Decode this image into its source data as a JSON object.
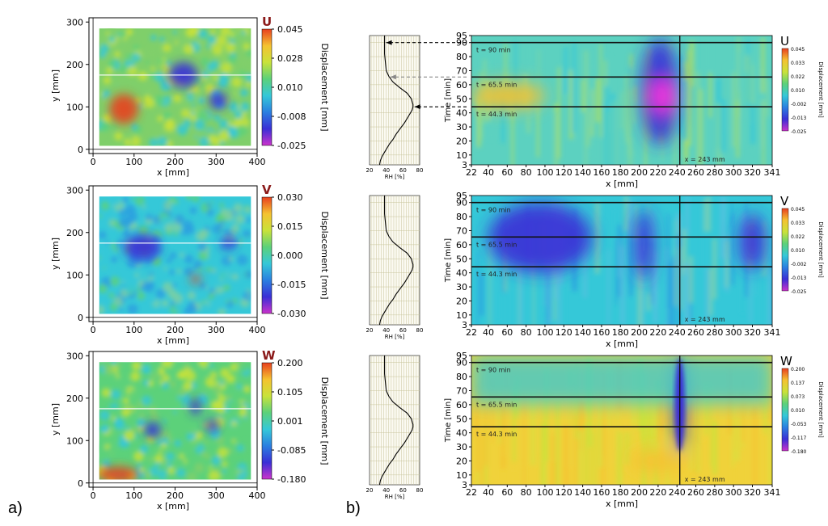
{
  "panel_labels": [
    "a)",
    "b)"
  ],
  "colors": {
    "colormap": [
      "#cc33cc",
      "#3a2fd6",
      "#2a7fe0",
      "#35c8d8",
      "#5cd17a",
      "#c9e23a",
      "#f5c230",
      "#e8401f"
    ],
    "background": "#ffffff"
  },
  "chart_data": [
    {
      "type": "heatmap",
      "panel": "a)",
      "component": "U",
      "xlabel": "x [mm]",
      "ylabel": "y [mm]",
      "x_ticks": [
        "0",
        "100",
        "200",
        "300",
        "400"
      ],
      "y_ticks": [
        "0",
        "100",
        "200",
        "300"
      ],
      "xlim": [
        -10,
        400
      ],
      "ylim": [
        -10,
        310
      ],
      "colorbar": {
        "title": "U",
        "label": "Displacement [mm]",
        "ticks": [
          "0.045",
          "0.028",
          "0.010",
          "-0.008",
          "-0.025"
        ],
        "range": [
          -0.025,
          0.045
        ]
      },
      "features": [
        {
          "kind": "high",
          "x": 75,
          "y": 95,
          "rx": 35,
          "ry": 35
        },
        {
          "kind": "low",
          "x": 220,
          "y": 175,
          "rx": 35,
          "ry": 30
        },
        {
          "kind": "low",
          "x": 305,
          "y": 115,
          "rx": 22,
          "ry": 20
        }
      ]
    },
    {
      "type": "heatmap",
      "panel": "a)",
      "component": "V",
      "xlabel": "x [mm]",
      "ylabel": "y [mm]",
      "x_ticks": [
        "0",
        "100",
        "200",
        "300",
        "400"
      ],
      "y_ticks": [
        "0",
        "100",
        "200",
        "300"
      ],
      "xlim": [
        -10,
        400
      ],
      "ylim": [
        -10,
        310
      ],
      "colorbar": {
        "title": "V",
        "label": "Displacement [mm]",
        "ticks": [
          "0.030",
          "0.015",
          "0.000",
          "-0.015",
          "-0.030"
        ],
        "range": [
          -0.03,
          0.03
        ]
      },
      "features": [
        {
          "kind": "low",
          "x": 120,
          "y": 165,
          "rx": 45,
          "ry": 30
        },
        {
          "kind": "low",
          "x": 330,
          "y": 175,
          "rx": 18,
          "ry": 15
        },
        {
          "kind": "high",
          "x": 250,
          "y": 90,
          "rx": 12,
          "ry": 10
        }
      ]
    },
    {
      "type": "heatmap",
      "panel": "a)",
      "component": "W",
      "xlabel": "x [mm]",
      "ylabel": "y [mm]",
      "x_ticks": [
        "0",
        "100",
        "200",
        "300",
        "400"
      ],
      "y_ticks": [
        "0",
        "100",
        "200",
        "300"
      ],
      "xlim": [
        -10,
        400
      ],
      "ylim": [
        -10,
        310
      ],
      "colorbar": {
        "title": "W",
        "label": "Displacement [mm]",
        "ticks": [
          "0.200",
          "0.105",
          "0.001",
          "-0.085",
          "-0.180"
        ],
        "range": [
          -0.18,
          0.2
        ]
      },
      "features": [
        {
          "kind": "low",
          "x": 145,
          "y": 125,
          "rx": 20,
          "ry": 18
        },
        {
          "kind": "low",
          "x": 250,
          "y": 180,
          "rx": 12,
          "ry": 20
        },
        {
          "kind": "low",
          "x": 290,
          "y": 135,
          "rx": 16,
          "ry": 14
        },
        {
          "kind": "high",
          "x": 60,
          "y": 20,
          "rx": 50,
          "ry": 18
        }
      ]
    },
    {
      "type": "line",
      "panel": "b)",
      "component": "U",
      "xlabel": "RH [%]",
      "x_ticks": [
        "20",
        "40",
        "60",
        "80"
      ],
      "xlim": [
        20,
        80
      ],
      "ylim": [
        3,
        95
      ],
      "x": [
        32,
        33,
        35,
        38,
        41,
        44,
        48,
        52,
        57,
        62,
        67,
        71,
        72,
        72,
        70,
        65,
        56,
        48,
        43,
        40,
        39,
        38,
        38,
        38
      ],
      "y": [
        3,
        6,
        9,
        12,
        15,
        18,
        21,
        25,
        29,
        33,
        38,
        42,
        44,
        46,
        50,
        54,
        58,
        62,
        66,
        70,
        76,
        82,
        88,
        95
      ]
    },
    {
      "type": "line",
      "panel": "b)",
      "component": "V",
      "xlabel": "RH [%]",
      "x_ticks": [
        "20",
        "40",
        "60",
        "80"
      ],
      "xlim": [
        20,
        80
      ],
      "ylim": [
        3,
        95
      ],
      "x": [
        32,
        33,
        35,
        38,
        41,
        44,
        48,
        52,
        57,
        62,
        67,
        71,
        72,
        72,
        70,
        65,
        56,
        48,
        43,
        40,
        39,
        38,
        38,
        38
      ],
      "y": [
        3,
        6,
        9,
        12,
        15,
        18,
        21,
        25,
        29,
        33,
        38,
        42,
        44,
        46,
        50,
        54,
        58,
        62,
        66,
        70,
        76,
        82,
        88,
        95
      ]
    },
    {
      "type": "line",
      "panel": "b)",
      "component": "W",
      "xlabel": "RH [%]",
      "x_ticks": [
        "20",
        "40",
        "60",
        "80"
      ],
      "xlim": [
        20,
        80
      ],
      "ylim": [
        3,
        95
      ],
      "x": [
        32,
        33,
        35,
        38,
        41,
        44,
        48,
        52,
        57,
        62,
        67,
        71,
        72,
        72,
        70,
        65,
        56,
        48,
        43,
        40,
        39,
        38,
        38,
        38
      ],
      "y": [
        3,
        6,
        9,
        12,
        15,
        18,
        21,
        25,
        29,
        33,
        38,
        42,
        44,
        46,
        50,
        54,
        58,
        62,
        66,
        70,
        76,
        82,
        88,
        95
      ]
    },
    {
      "type": "heatmap",
      "panel": "b)",
      "component": "U",
      "xlabel": "x [mm]",
      "ylabel": "Time [min]",
      "x_ticks": [
        "22",
        "40",
        "60",
        "80",
        "100",
        "120",
        "140",
        "160",
        "180",
        "200",
        "220",
        "240",
        "260",
        "280",
        "300",
        "320",
        "341"
      ],
      "y_ticks": [
        "3",
        "10",
        "20",
        "30",
        "40",
        "50",
        "60",
        "70",
        "80",
        "90",
        "95"
      ],
      "xlim": [
        22,
        341
      ],
      "ylim": [
        3,
        95
      ],
      "hlines": [
        {
          "t": 90,
          "label": "t = 90 min"
        },
        {
          "t": 65.5,
          "label": "t = 65.5 min"
        },
        {
          "t": 44.3,
          "label": "t = 44.3 min"
        }
      ],
      "vline": {
        "x": 243,
        "label": "x = 243 mm"
      },
      "colorbar": {
        "title": "U",
        "label": "Displacement [mm]",
        "ticks": [
          "0.045",
          "0.033",
          "0.022",
          "0.010",
          "-0.002",
          "-0.013",
          "-0.025"
        ],
        "range": [
          -0.025,
          0.045
        ]
      },
      "features": [
        {
          "kind": "low",
          "x": 222,
          "y": 55,
          "rx": 20,
          "ry": 38
        },
        {
          "kind": "extreme-low",
          "x": 225,
          "y": 52,
          "rx": 14,
          "ry": 12
        },
        {
          "kind": "high",
          "x": 60,
          "y": 52,
          "rx": 40,
          "ry": 10
        }
      ]
    },
    {
      "type": "heatmap",
      "panel": "b)",
      "component": "V",
      "xlabel": "x [mm]",
      "ylabel": "Time [min]",
      "x_ticks": [
        "22",
        "40",
        "60",
        "80",
        "100",
        "120",
        "140",
        "160",
        "180",
        "200",
        "220",
        "240",
        "260",
        "280",
        "300",
        "320",
        "341"
      ],
      "y_ticks": [
        "3",
        "10",
        "20",
        "30",
        "40",
        "50",
        "60",
        "70",
        "80",
        "90",
        "95"
      ],
      "xlim": [
        22,
        341
      ],
      "ylim": [
        3,
        95
      ],
      "hlines": [
        {
          "t": 90,
          "label": "t = 90 min"
        },
        {
          "t": 65.5,
          "label": "t = 65.5 min"
        },
        {
          "t": 44.3,
          "label": "t = 44.3 min"
        }
      ],
      "vline": {
        "x": 243,
        "label": "x = 243 mm"
      },
      "colorbar": {
        "title": "V",
        "label": "Displacement [mm]",
        "ticks": [
          "0.045",
          "0.033",
          "0.022",
          "0.010",
          "-0.002",
          "-0.013",
          "-0.025"
        ],
        "range": [
          -0.025,
          0.045
        ]
      },
      "features": [
        {
          "kind": "low",
          "x": 95,
          "y": 65,
          "rx": 55,
          "ry": 25
        },
        {
          "kind": "low",
          "x": 320,
          "y": 62,
          "rx": 14,
          "ry": 20
        },
        {
          "kind": "low",
          "x": 205,
          "y": 60,
          "rx": 10,
          "ry": 25
        }
      ]
    },
    {
      "type": "heatmap",
      "panel": "b)",
      "component": "W",
      "xlabel": "x [mm]",
      "ylabel": "Time [min]",
      "x_ticks": [
        "22",
        "40",
        "60",
        "80",
        "100",
        "120",
        "140",
        "160",
        "180",
        "200",
        "220",
        "240",
        "260",
        "280",
        "300",
        "320",
        "341"
      ],
      "y_ticks": [
        "3",
        "10",
        "20",
        "30",
        "40",
        "50",
        "60",
        "70",
        "80",
        "90",
        "95"
      ],
      "xlim": [
        22,
        341
      ],
      "ylim": [
        3,
        95
      ],
      "hlines": [
        {
          "t": 90,
          "label": "t = 90 min"
        },
        {
          "t": 65.5,
          "label": "t = 65.5 min"
        },
        {
          "t": 44.3,
          "label": "t = 44.3 min"
        }
      ],
      "vline": {
        "x": 243,
        "label": "x = 243 mm"
      },
      "colorbar": {
        "title": "W",
        "label": "Displacement [mm]",
        "ticks": [
          "0.200",
          "0.137",
          "0.073",
          "0.010",
          "-0.053",
          "-0.117",
          "-0.180"
        ],
        "range": [
          -0.18,
          0.2
        ]
      },
      "features": [
        {
          "kind": "low",
          "x": 243,
          "y": 60,
          "rx": 6,
          "ry": 35
        },
        {
          "kind": "high",
          "x": 220,
          "y": 20,
          "rx": 30,
          "ry": 8
        }
      ]
    }
  ]
}
